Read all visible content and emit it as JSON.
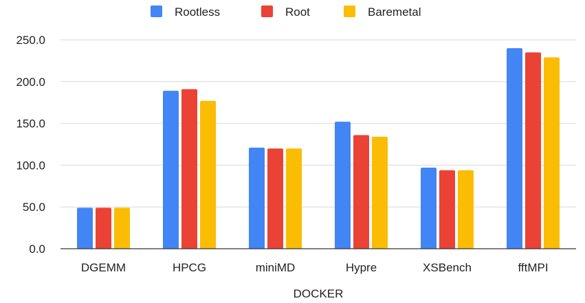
{
  "chart_data": {
    "type": "bar",
    "title": "",
    "xlabel": "DOCKER",
    "ylabel": "",
    "ylim": [
      0,
      250
    ],
    "yticks": [
      "0.0",
      "50.0",
      "100.0",
      "150.0",
      "200.0",
      "250.0"
    ],
    "ytick_values": [
      0,
      50,
      100,
      150,
      200,
      250
    ],
    "grid": true,
    "legend_position": "top",
    "categories": [
      "DGEMM",
      "HPCG",
      "miniMD",
      "Hypre",
      "XSBench",
      "fftMPI"
    ],
    "series": [
      {
        "name": "Rootless",
        "color": "#4285F4",
        "values": [
          49,
          189,
          121,
          152,
          97,
          240
        ]
      },
      {
        "name": "Root",
        "color": "#EA4335",
        "values": [
          49,
          191,
          120,
          136,
          94,
          235
        ]
      },
      {
        "name": "Baremetal",
        "color": "#FBBC04",
        "values": [
          49,
          177,
          120,
          134,
          94,
          229
        ]
      }
    ]
  }
}
